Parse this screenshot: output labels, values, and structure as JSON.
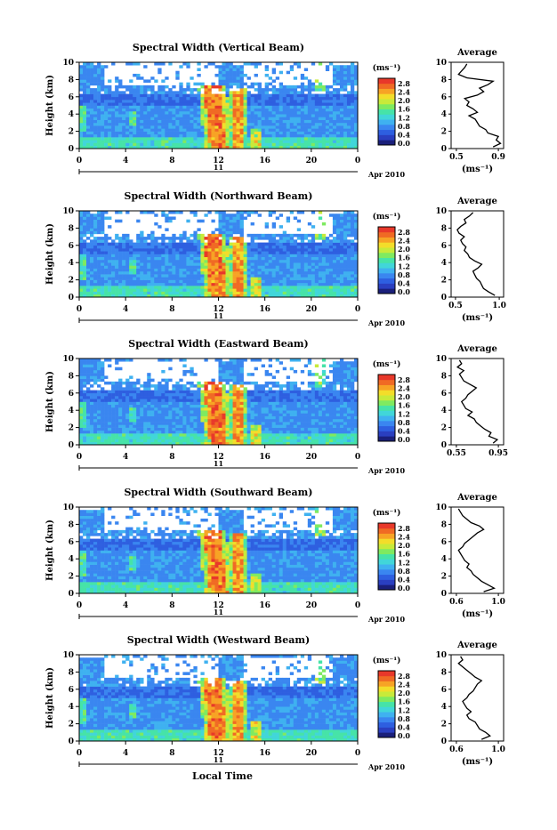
{
  "figure": {
    "bottom_label": "Local Time"
  },
  "colorscale": [
    "#1a1f7a",
    "#2a3fc0",
    "#2e5fe0",
    "#3a86f0",
    "#3fb1f0",
    "#41d6d9",
    "#46e3a8",
    "#7fea60",
    "#c8ea3a",
    "#f3dd2a",
    "#f7a325",
    "#f06a24",
    "#e8382a"
  ],
  "chart_data": [
    {
      "type": "heatmap",
      "title": "Spectral Width (Vertical Beam)",
      "ylabel": "Height (km)",
      "ylim": [
        0,
        10
      ],
      "yticks": [
        "0",
        "2",
        "4",
        "6",
        "8",
        "10"
      ],
      "xlim": [
        0,
        24
      ],
      "xticks": [
        "0",
        "4",
        "8",
        "12",
        "16",
        "20",
        "0"
      ],
      "date_label": "11",
      "month_label": "Apr 2010",
      "colorbar": {
        "unit": "(ms⁻¹)",
        "ticks": [
          "2.8",
          "2.4",
          "2.0",
          "1.6",
          "1.2",
          "0.8",
          "0.4",
          "0.0"
        ]
      },
      "profile": {
        "title": "Average",
        "xlabel": "(ms⁻¹)",
        "xticks": [
          "0.5",
          "0.9"
        ],
        "xlim": [
          0.45,
          0.95
        ],
        "yticks": [
          "0",
          "2",
          "4",
          "6",
          "8",
          "10"
        ],
        "height": [
          0.2,
          0.6,
          1.0,
          1.4,
          1.8,
          2.2,
          2.6,
          3.0,
          3.4,
          3.8,
          4.2,
          4.6,
          5.0,
          5.4,
          5.8,
          6.2,
          6.6,
          7.0,
          7.4,
          7.8,
          8.2,
          8.6,
          9.0,
          9.4,
          9.8
        ],
        "width": [
          0.85,
          0.92,
          0.88,
          0.9,
          0.8,
          0.78,
          0.72,
          0.7,
          0.68,
          0.62,
          0.7,
          0.66,
          0.6,
          0.62,
          0.58,
          0.7,
          0.76,
          0.72,
          0.8,
          0.85,
          0.6,
          0.52,
          0.55,
          0.58,
          0.6
        ]
      }
    },
    {
      "type": "heatmap",
      "title": "Spectral Width (Northward Beam)",
      "ylabel": "Height (km)",
      "ylim": [
        0,
        10
      ],
      "yticks": [
        "0",
        "2",
        "4",
        "6",
        "8",
        "10"
      ],
      "xlim": [
        0,
        24
      ],
      "xticks": [
        "0",
        "4",
        "8",
        "12",
        "16",
        "20",
        "0"
      ],
      "date_label": "11",
      "month_label": "Apr 2010",
      "colorbar": {
        "unit": "(ms⁻¹)",
        "ticks": [
          "2.8",
          "2.4",
          "2.0",
          "1.6",
          "1.2",
          "0.8",
          "0.4",
          "0.0"
        ]
      },
      "profile": {
        "title": "Average",
        "xlabel": "(ms⁻¹)",
        "xticks": [
          "0.5",
          "1.0"
        ],
        "xlim": [
          0.45,
          1.05
        ],
        "yticks": [
          "0",
          "2",
          "4",
          "6",
          "8",
          "10"
        ],
        "height": [
          0.2,
          0.6,
          1.0,
          1.4,
          1.8,
          2.2,
          2.6,
          3.0,
          3.4,
          3.8,
          4.2,
          4.6,
          5.0,
          5.4,
          5.8,
          6.2,
          6.6,
          7.0,
          7.4,
          7.8,
          8.2,
          8.6,
          9.0,
          9.4,
          9.8
        ],
        "width": [
          0.95,
          0.88,
          0.82,
          0.8,
          0.78,
          0.74,
          0.72,
          0.7,
          0.76,
          0.8,
          0.72,
          0.66,
          0.64,
          0.6,
          0.62,
          0.58,
          0.56,
          0.6,
          0.54,
          0.52,
          0.56,
          0.62,
          0.6,
          0.66,
          0.7
        ]
      }
    },
    {
      "type": "heatmap",
      "title": "Spectral Width (Eastward Beam)",
      "ylabel": "Height (km)",
      "ylim": [
        0,
        10
      ],
      "yticks": [
        "0",
        "2",
        "4",
        "6",
        "8",
        "10"
      ],
      "xlim": [
        0,
        24
      ],
      "xticks": [
        "0",
        "4",
        "8",
        "12",
        "16",
        "20",
        "0"
      ],
      "date_label": "11",
      "month_label": "Apr 2010",
      "colorbar": {
        "unit": "(ms⁻¹)",
        "ticks": [
          "2.8",
          "2.4",
          "2.0",
          "1.6",
          "1.2",
          "0.8",
          "0.4",
          "0.0"
        ]
      },
      "profile": {
        "title": "Average",
        "xlabel": "",
        "xticks": [
          "0.55",
          "0.95"
        ],
        "xlim": [
          0.5,
          1.0
        ],
        "yticks": [
          "0",
          "2",
          "4",
          "6",
          "8",
          "10"
        ],
        "height": [
          0.2,
          0.6,
          1.0,
          1.4,
          1.8,
          2.2,
          2.6,
          3.0,
          3.4,
          3.8,
          4.2,
          4.6,
          5.0,
          5.4,
          5.8,
          6.2,
          6.6,
          7.0,
          7.4,
          7.8,
          8.2,
          8.6,
          9.0,
          9.4,
          9.8
        ],
        "width": [
          0.9,
          0.94,
          0.86,
          0.88,
          0.82,
          0.78,
          0.74,
          0.72,
          0.66,
          0.7,
          0.64,
          0.62,
          0.6,
          0.64,
          0.66,
          0.7,
          0.74,
          0.68,
          0.62,
          0.6,
          0.58,
          0.62,
          0.56,
          0.6,
          0.58
        ]
      }
    },
    {
      "type": "heatmap",
      "title": "Spectral Width (Southward Beam)",
      "ylabel": "Height (km)",
      "ylim": [
        0,
        10
      ],
      "yticks": [
        "0",
        "2",
        "4",
        "6",
        "8",
        "10"
      ],
      "xlim": [
        0,
        24
      ],
      "xticks": [
        "0",
        "4",
        "8",
        "12",
        "16",
        "20",
        "0"
      ],
      "date_label": "11",
      "month_label": "Apr 2010",
      "colorbar": {
        "unit": "(ms⁻¹)",
        "ticks": [
          "2.8",
          "2.4",
          "2.0",
          "1.6",
          "1.2",
          "0.8",
          "0.4",
          "0.0"
        ]
      },
      "profile": {
        "title": "Average",
        "xlabel": "(ms⁻¹)",
        "xticks": [
          "0.6",
          "1.0"
        ],
        "xlim": [
          0.55,
          1.05
        ],
        "yticks": [
          "0",
          "2",
          "4",
          "6",
          "8",
          "10"
        ],
        "height": [
          0.2,
          0.6,
          1.0,
          1.4,
          1.8,
          2.2,
          2.6,
          3.0,
          3.4,
          3.8,
          4.2,
          4.6,
          5.0,
          5.4,
          5.8,
          6.2,
          6.6,
          7.0,
          7.4,
          7.8,
          8.2,
          8.6,
          9.0,
          9.4,
          9.8
        ],
        "width": [
          0.86,
          0.96,
          0.9,
          0.84,
          0.8,
          0.76,
          0.74,
          0.7,
          0.72,
          0.68,
          0.66,
          0.64,
          0.62,
          0.66,
          0.68,
          0.72,
          0.76,
          0.8,
          0.86,
          0.82,
          0.74,
          0.7,
          0.66,
          0.64,
          0.62
        ]
      }
    },
    {
      "type": "heatmap",
      "title": "Spectral Width (Westward Beam)",
      "ylabel": "Height (km)",
      "ylim": [
        0,
        10
      ],
      "yticks": [
        "0",
        "2",
        "4",
        "6",
        "8",
        "10"
      ],
      "xlim": [
        0,
        24
      ],
      "xticks": [
        "0",
        "4",
        "8",
        "12",
        "16",
        "20",
        "0"
      ],
      "date_label": "11",
      "month_label": "Apr 2010",
      "colorbar": {
        "unit": "(ms⁻¹)",
        "ticks": [
          "2.8",
          "2.4",
          "2.0",
          "1.6",
          "1.2",
          "0.8",
          "0.4",
          "0.0"
        ]
      },
      "profile": {
        "title": "Average",
        "xlabel": "(ms⁻¹)",
        "xticks": [
          "0.6",
          "1.0"
        ],
        "xlim": [
          0.55,
          1.05
        ],
        "yticks": [
          "0",
          "2",
          "4",
          "6",
          "8",
          "10"
        ],
        "height": [
          0.2,
          0.6,
          1.0,
          1.4,
          1.8,
          2.2,
          2.6,
          3.0,
          3.4,
          3.8,
          4.2,
          4.6,
          5.0,
          5.4,
          5.8,
          6.2,
          6.6,
          7.0,
          7.4,
          7.8,
          8.2,
          8.6,
          9.0,
          9.4,
          9.8
        ],
        "width": [
          0.84,
          0.92,
          0.88,
          0.82,
          0.8,
          0.78,
          0.72,
          0.7,
          0.74,
          0.7,
          0.68,
          0.66,
          0.7,
          0.72,
          0.76,
          0.78,
          0.8,
          0.84,
          0.78,
          0.74,
          0.7,
          0.66,
          0.62,
          0.66,
          0.64
        ]
      }
    }
  ]
}
